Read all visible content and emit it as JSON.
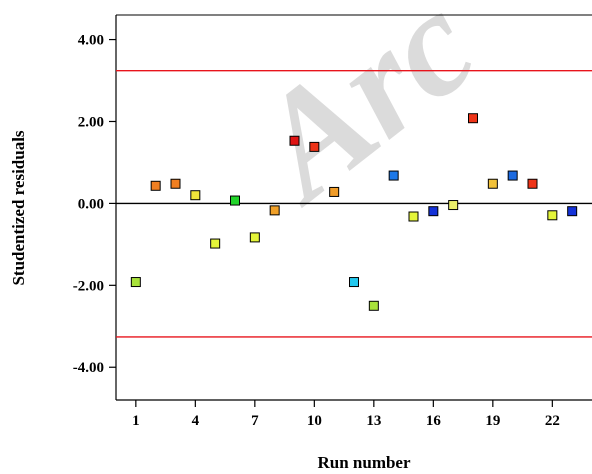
{
  "watermark": "Arc",
  "chart_data": {
    "type": "scatter",
    "xlabel": "Run number",
    "ylabel": "Studentized residuals",
    "xlim": [
      0,
      24
    ],
    "ylim": [
      -4.8,
      4.6
    ],
    "x_ticks": [
      1,
      4,
      7,
      10,
      13,
      16,
      19,
      22
    ],
    "y_ticks": [
      4,
      2,
      0,
      -2,
      -4
    ],
    "y_tick_labels": [
      "4.00",
      "2.00",
      "0.00",
      "-2.00",
      "-4.00"
    ],
    "zero_line": 0,
    "limit_lines": [
      {
        "y": 3.24,
        "color": "#e8141c"
      },
      {
        "y": -3.26,
        "color": "#e8141c"
      }
    ],
    "points": [
      {
        "x": 1,
        "y": -1.92,
        "color": "#a8e23a"
      },
      {
        "x": 2,
        "y": 0.43,
        "color": "#f07f22"
      },
      {
        "x": 3,
        "y": 0.48,
        "color": "#f07f22"
      },
      {
        "x": 4,
        "y": 0.2,
        "color": "#f2e53a"
      },
      {
        "x": 5,
        "y": -0.98,
        "color": "#e4f53a"
      },
      {
        "x": 6,
        "y": 0.07,
        "color": "#22d42a"
      },
      {
        "x": 7,
        "y": -0.83,
        "color": "#e4f53a"
      },
      {
        "x": 8,
        "y": -0.17,
        "color": "#f0a028"
      },
      {
        "x": 9,
        "y": 1.53,
        "color": "#e01414"
      },
      {
        "x": 10,
        "y": 1.38,
        "color": "#ee3418"
      },
      {
        "x": 11,
        "y": 0.28,
        "color": "#f09c28"
      },
      {
        "x": 12,
        "y": -1.92,
        "color": "#22c8ee"
      },
      {
        "x": 13,
        "y": -2.5,
        "color": "#a8e23a"
      },
      {
        "x": 14,
        "y": 0.68,
        "color": "#1c78e8"
      },
      {
        "x": 15,
        "y": -0.32,
        "color": "#e4f53a"
      },
      {
        "x": 16,
        "y": -0.19,
        "color": "#1432d8"
      },
      {
        "x": 17,
        "y": -0.04,
        "color": "#ecf06a"
      },
      {
        "x": 18,
        "y": 2.08,
        "color": "#ee3418"
      },
      {
        "x": 19,
        "y": 0.48,
        "color": "#f2c23a"
      },
      {
        "x": 20,
        "y": 0.68,
        "color": "#1c6ae0"
      },
      {
        "x": 21,
        "y": 0.48,
        "color": "#ee3418"
      },
      {
        "x": 22,
        "y": -0.29,
        "color": "#e4f53a"
      },
      {
        "x": 23,
        "y": -0.19,
        "color": "#1432d8"
      }
    ]
  }
}
